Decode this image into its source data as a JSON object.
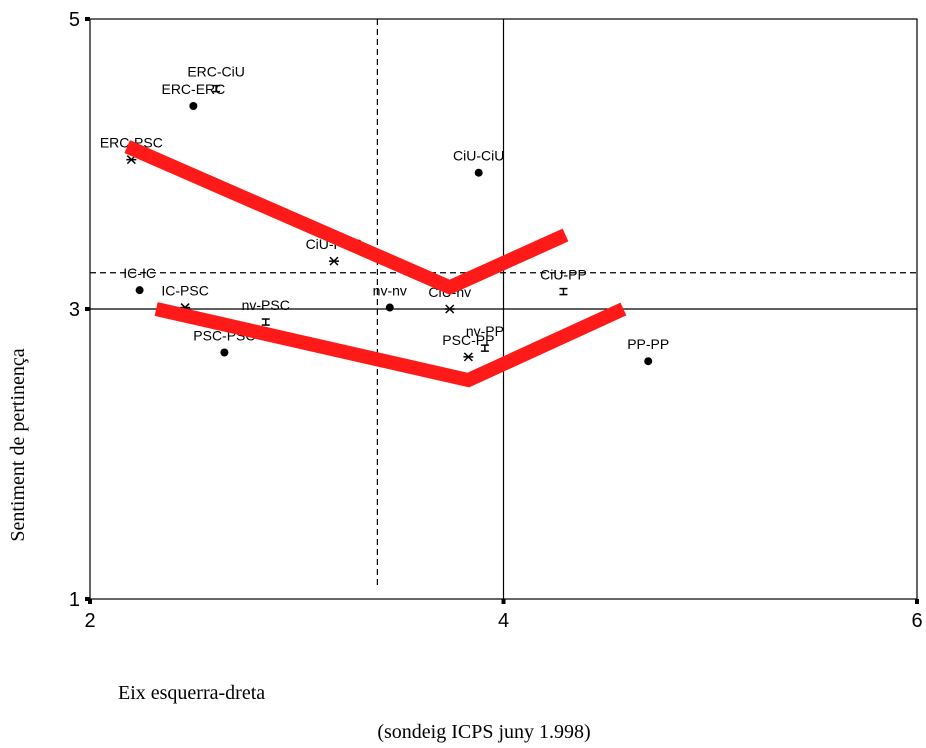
{
  "chart_data": {
    "type": "scatter",
    "xlabel": "Eix esquerra-dreta",
    "ylabel": "Sentiment de pertinença",
    "caption": "(sondeig ICPS juny 1.998)",
    "xlim": [
      2,
      6
    ],
    "ylim": [
      1,
      5
    ],
    "x_ticks": [
      "2",
      "4",
      "6"
    ],
    "y_ticks": [
      "1",
      "3",
      "5"
    ],
    "reference_lines": {
      "solid_x": 4,
      "solid_y": 3,
      "dashed_x": 3.39,
      "dashed_y": 3.25
    },
    "points": [
      {
        "label": "ERC-CiU",
        "x": 2.61,
        "y": 4.52,
        "marker": "tick"
      },
      {
        "label": "ERC-ERC",
        "x": 2.5,
        "y": 4.4,
        "marker": "dot"
      },
      {
        "label": "ERC-PSC",
        "x": 2.2,
        "y": 4.03,
        "marker": "star"
      },
      {
        "label": "CiU-CiU",
        "x": 3.88,
        "y": 3.94,
        "marker": "dot"
      },
      {
        "label": "CiU-PSC",
        "x": 3.18,
        "y": 3.33,
        "marker": "star"
      },
      {
        "label": "IC-IC",
        "x": 2.24,
        "y": 3.13,
        "marker": "dot"
      },
      {
        "label": "IC-PSC",
        "x": 2.46,
        "y": 3.01,
        "marker": "star"
      },
      {
        "label": "nv-PSC",
        "x": 2.85,
        "y": 2.91,
        "marker": "tick"
      },
      {
        "label": "nv-nv",
        "x": 3.45,
        "y": 3.01,
        "marker": "dot"
      },
      {
        "label": "CiU-nv",
        "x": 3.74,
        "y": 3.0,
        "marker": "star"
      },
      {
        "label": "CiU-PP",
        "x": 4.29,
        "y": 3.12,
        "marker": "tick"
      },
      {
        "label": "nv-PP",
        "x": 3.91,
        "y": 2.73,
        "marker": "tick"
      },
      {
        "label": "PSC-PP",
        "x": 3.83,
        "y": 2.67,
        "marker": "star"
      },
      {
        "label": "PSC-PSC",
        "x": 2.65,
        "y": 2.7,
        "marker": "dot"
      },
      {
        "label": "PP-PP",
        "x": 4.7,
        "y": 2.64,
        "marker": "dot"
      }
    ],
    "series": [
      {
        "points": [
          [
            2.18,
            4.12
          ],
          [
            3.74,
            3.15
          ],
          [
            4.3,
            3.51
          ]
        ],
        "color": "#ff1a1a"
      },
      {
        "points": [
          [
            2.32,
            3.0
          ],
          [
            3.83,
            2.51
          ],
          [
            4.58,
            3.0
          ]
        ],
        "color": "#ff1a1a"
      }
    ]
  }
}
